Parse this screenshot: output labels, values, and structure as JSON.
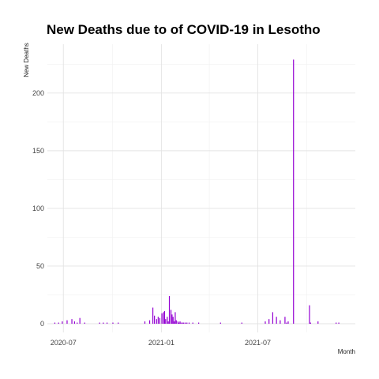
{
  "chart_data": {
    "type": "bar",
    "title": "New Deaths due to of COVID-19 in Lesotho",
    "xlabel": "Month",
    "ylabel": "New Deaths",
    "x_ticks": [
      "2020-07",
      "2021-01",
      "2021-07"
    ],
    "y_ticks": [
      0,
      50,
      100,
      150,
      200
    ],
    "ylim": [
      0,
      230
    ],
    "xlim": [
      "2020-06-01",
      "2021-12-31"
    ],
    "grid": true,
    "bar_color": "#9400D3",
    "series": [
      {
        "dates": [
          "2020-06-15",
          "2020-06-22",
          "2020-06-29",
          "2020-07-08",
          "2020-07-17",
          "2020-07-22",
          "2020-07-27",
          "2020-08-01",
          "2020-08-10",
          "2020-09-07",
          "2020-09-14",
          "2020-09-21",
          "2020-10-02",
          "2020-10-12",
          "2020-12-01",
          "2020-12-10",
          "2020-12-16",
          "2020-12-19",
          "2020-12-23",
          "2020-12-26",
          "2020-12-29",
          "2021-01-02",
          "2021-01-05",
          "2021-01-07",
          "2021-01-09",
          "2021-01-12",
          "2021-01-14",
          "2021-01-16",
          "2021-01-19",
          "2021-01-21",
          "2021-01-23",
          "2021-01-25",
          "2021-01-27",
          "2021-01-29",
          "2021-02-01",
          "2021-02-03",
          "2021-02-05",
          "2021-02-07",
          "2021-02-10",
          "2021-02-12",
          "2021-02-15",
          "2021-02-18",
          "2021-02-22",
          "2021-03-01",
          "2021-03-12",
          "2021-04-22",
          "2021-06-01",
          "2021-07-15",
          "2021-07-22",
          "2021-07-29",
          "2021-08-05",
          "2021-08-12",
          "2021-08-21",
          "2021-08-24",
          "2021-08-27",
          "2021-09-06",
          "2021-10-06",
          "2021-10-08",
          "2021-10-22",
          "2021-11-25",
          "2021-11-30"
        ],
        "values": [
          1,
          1,
          2,
          3,
          4,
          2,
          1,
          5,
          1,
          1,
          1,
          1,
          1,
          1,
          2,
          3,
          14,
          7,
          4,
          6,
          5,
          9,
          10,
          11,
          4,
          6,
          2,
          24,
          12,
          8,
          6,
          2,
          10,
          3,
          2,
          1,
          2,
          1,
          1,
          1,
          1,
          1,
          1,
          1,
          1,
          1,
          1,
          2,
          4,
          10,
          6,
          3,
          6,
          1,
          2,
          229,
          16,
          1,
          2,
          1,
          1
        ]
      }
    ]
  }
}
